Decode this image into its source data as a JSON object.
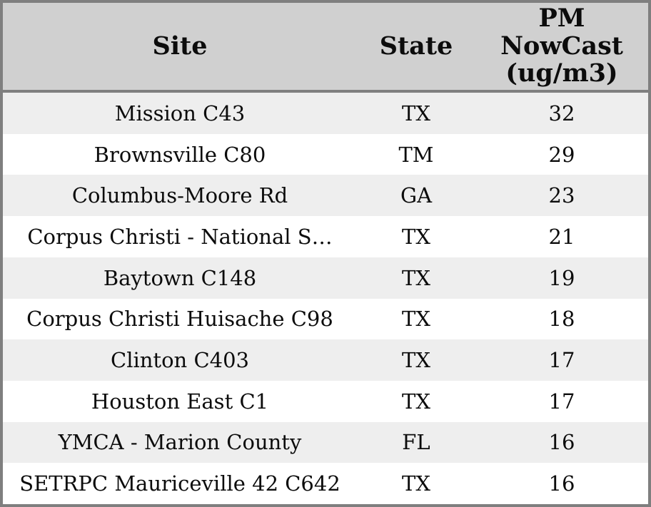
{
  "chart_data": {
    "type": "table",
    "columns": [
      "Site",
      "State",
      "PM NowCast (ug/m3)"
    ],
    "rows": [
      [
        "Mission C43",
        "TX",
        32
      ],
      [
        "Brownsville C80",
        "TM",
        29
      ],
      [
        "Columbus-Moore Rd",
        "GA",
        23
      ],
      [
        "Corpus Christi - National S…",
        "TX",
        21
      ],
      [
        "Baytown C148",
        "TX",
        19
      ],
      [
        "Corpus Christi Huisache C98",
        "TX",
        18
      ],
      [
        "Clinton C403",
        "TX",
        17
      ],
      [
        "Houston East C1",
        "TX",
        17
      ],
      [
        "YMCA - Marion County",
        "FL",
        16
      ],
      [
        "SETRPC Mauriceville 42 C642",
        "TX",
        16
      ]
    ]
  },
  "table": {
    "header": {
      "site": "Site",
      "state": "State",
      "pm": "PM\nNowCast\n(ug/m3)"
    },
    "colors": {
      "header_bg": "#d0d0d0",
      "row_alt_bg": "#eeeeee",
      "row_bg": "#ffffff",
      "border": "#7f7f7f",
      "text": "#0c0c0c"
    }
  }
}
